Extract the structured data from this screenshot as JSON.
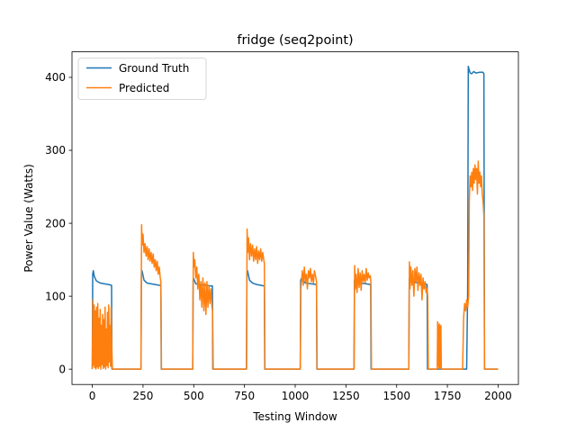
{
  "chart_data": {
    "type": "line",
    "title": "fridge (seq2point)",
    "xlabel": "Testing Window",
    "ylabel": "Power Value (Watts)",
    "xlim": [
      -100,
      2100
    ],
    "ylim": [
      -21,
      435
    ],
    "xticks": [
      0,
      250,
      500,
      750,
      1000,
      1250,
      1500,
      1750,
      2000
    ],
    "yticks": [
      0,
      100,
      200,
      300,
      400
    ],
    "legend_position": "upper left",
    "grid": false,
    "series": [
      {
        "name": "Ground Truth",
        "color": "#1f77b4",
        "x": [
          0,
          2,
          5,
          10,
          20,
          40,
          60,
          80,
          95,
          97,
          240,
          242,
          245,
          255,
          270,
          290,
          310,
          330,
          338,
          340,
          495,
          497,
          500,
          510,
          530,
          560,
          585,
          592,
          594,
          760,
          762,
          765,
          775,
          790,
          810,
          830,
          848,
          850,
          1025,
          1027,
          1030,
          1050,
          1080,
          1105,
          1107,
          1290,
          1292,
          1295,
          1320,
          1350,
          1372,
          1374,
          1560,
          1562,
          1565,
          1590,
          1620,
          1640,
          1650,
          1652,
          1845,
          1850,
          1853,
          1858,
          1862,
          1870,
          1880,
          1890,
          1910,
          1925,
          1930,
          1933,
          2000
        ],
        "y": [
          0,
          130,
          135,
          127,
          121,
          118,
          117,
          116,
          115,
          0,
          0,
          128,
          135,
          122,
          118,
          117,
          116,
          115,
          115,
          0,
          0,
          122,
          124,
          117,
          116,
          115,
          114,
          114,
          0,
          0,
          128,
          135,
          122,
          118,
          116,
          115,
          114,
          0,
          0,
          122,
          124,
          118,
          117,
          116,
          0,
          0,
          122,
          124,
          118,
          117,
          116,
          0,
          0,
          124,
          126,
          119,
          118,
          117,
          116,
          0,
          0,
          110,
          415,
          410,
          406,
          405,
          408,
          406,
          407,
          407,
          405,
          0,
          0
        ]
      },
      {
        "name": "Predicted",
        "color": "#ff7f0e",
        "x": [
          0,
          3,
          6,
          9,
          12,
          15,
          18,
          21,
          24,
          27,
          30,
          33,
          36,
          39,
          42,
          45,
          48,
          51,
          54,
          57,
          60,
          63,
          66,
          69,
          72,
          75,
          78,
          81,
          84,
          87,
          90,
          93,
          96,
          99,
          240,
          243,
          246,
          250,
          255,
          260,
          265,
          270,
          275,
          280,
          285,
          290,
          295,
          300,
          305,
          310,
          315,
          320,
          325,
          330,
          335,
          338,
          341,
          495,
          498,
          501,
          505,
          510,
          515,
          520,
          525,
          530,
          535,
          540,
          545,
          550,
          555,
          560,
          565,
          570,
          575,
          580,
          585,
          590,
          593,
          596,
          760,
          763,
          766,
          770,
          775,
          780,
          785,
          790,
          795,
          800,
          805,
          810,
          815,
          820,
          825,
          830,
          835,
          840,
          845,
          848,
          851,
          1025,
          1028,
          1031,
          1035,
          1040,
          1045,
          1050,
          1055,
          1060,
          1065,
          1070,
          1075,
          1080,
          1085,
          1090,
          1095,
          1100,
          1105,
          1108,
          1290,
          1293,
          1296,
          1300,
          1305,
          1310,
          1315,
          1320,
          1325,
          1330,
          1335,
          1340,
          1345,
          1350,
          1355,
          1360,
          1365,
          1370,
          1373,
          1376,
          1560,
          1563,
          1566,
          1570,
          1575,
          1580,
          1585,
          1590,
          1595,
          1600,
          1605,
          1610,
          1615,
          1620,
          1625,
          1630,
          1635,
          1640,
          1645,
          1650,
          1653,
          1656,
          1700,
          1702,
          1704,
          1706,
          1708,
          1710,
          1712,
          1714,
          1716,
          1718,
          1720,
          1722,
          1825,
          1830,
          1835,
          1840,
          1845,
          1850,
          1855,
          1858,
          1862,
          1866,
          1870,
          1874,
          1878,
          1882,
          1886,
          1890,
          1894,
          1898,
          1902,
          1906,
          1910,
          1914,
          1918,
          1922,
          1926,
          1930,
          1933,
          1936,
          2000
        ],
        "y": [
          0,
          95,
          5,
          88,
          2,
          80,
          0,
          85,
          3,
          90,
          1,
          70,
          4,
          82,
          0,
          60,
          6,
          75,
          1,
          68,
          3,
          85,
          0,
          55,
          5,
          78,
          2,
          88,
          10,
          60,
          4,
          85,
          30,
          0,
          0,
          198,
          170,
          185,
          160,
          172,
          155,
          168,
          150,
          165,
          148,
          160,
          145,
          158,
          140,
          150,
          135,
          148,
          130,
          140,
          125,
          120,
          0,
          0,
          160,
          140,
          150,
          125,
          140,
          110,
          130,
          95,
          120,
          85,
          125,
          80,
          118,
          75,
          120,
          85,
          115,
          90,
          110,
          85,
          80,
          0,
          0,
          192,
          160,
          180,
          150,
          172,
          155,
          170,
          148,
          165,
          150,
          168,
          145,
          162,
          150,
          165,
          148,
          160,
          150,
          145,
          0,
          0,
          110,
          120,
          135,
          115,
          140,
          120,
          130,
          110,
          135,
          125,
          138,
          120,
          130,
          118,
          135,
          128,
          120,
          0,
          0,
          142,
          110,
          130,
          105,
          138,
          112,
          132,
          108,
          135,
          120,
          130,
          118,
          138,
          122,
          132,
          125,
          128,
          120,
          0,
          0,
          147,
          110,
          140,
          115,
          135,
          100,
          138,
          120,
          140,
          108,
          132,
          115,
          130,
          95,
          125,
          110,
          120,
          105,
          110,
          100,
          0,
          0,
          65,
          5,
          60,
          2,
          62,
          0,
          58,
          3,
          60,
          0,
          0,
          0,
          70,
          90,
          80,
          95,
          85,
          100,
          230,
          265,
          250,
          270,
          245,
          275,
          255,
          280,
          260,
          275,
          240,
          285,
          255,
          270,
          250,
          265,
          240,
          230,
          210,
          0,
          0,
          0
        ]
      }
    ]
  }
}
